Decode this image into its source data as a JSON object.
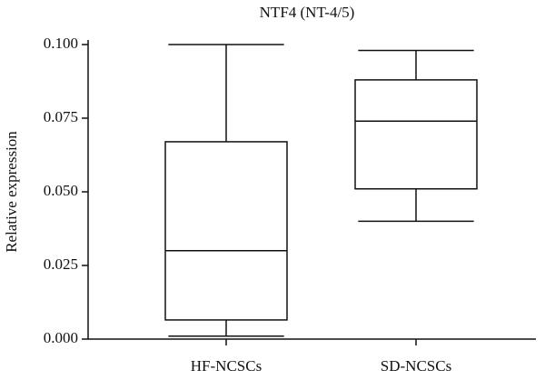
{
  "chart_data": {
    "type": "box",
    "title": "NTF4 (NT-4/5)",
    "y_label": "Relative expression",
    "categories": [
      "HF-NCSCs",
      "SD-NCSCs"
    ],
    "boxes": [
      {
        "min": 0.001,
        "q1": 0.0065,
        "median": 0.03,
        "q3": 0.067,
        "max": 0.1
      },
      {
        "min": 0.04,
        "q1": 0.051,
        "median": 0.074,
        "q3": 0.088,
        "max": 0.098
      }
    ],
    "color": "#000000",
    "ylim": [
      0,
      0.1
    ],
    "yticks": [
      {
        "value": 0,
        "label": "0.000"
      },
      {
        "value": 0.025,
        "label": "0.025"
      },
      {
        "value": 0.05,
        "label": "0.050"
      },
      {
        "value": 0.075,
        "label": "0.075"
      },
      {
        "value": 0.1,
        "label": "0.100"
      }
    ]
  }
}
